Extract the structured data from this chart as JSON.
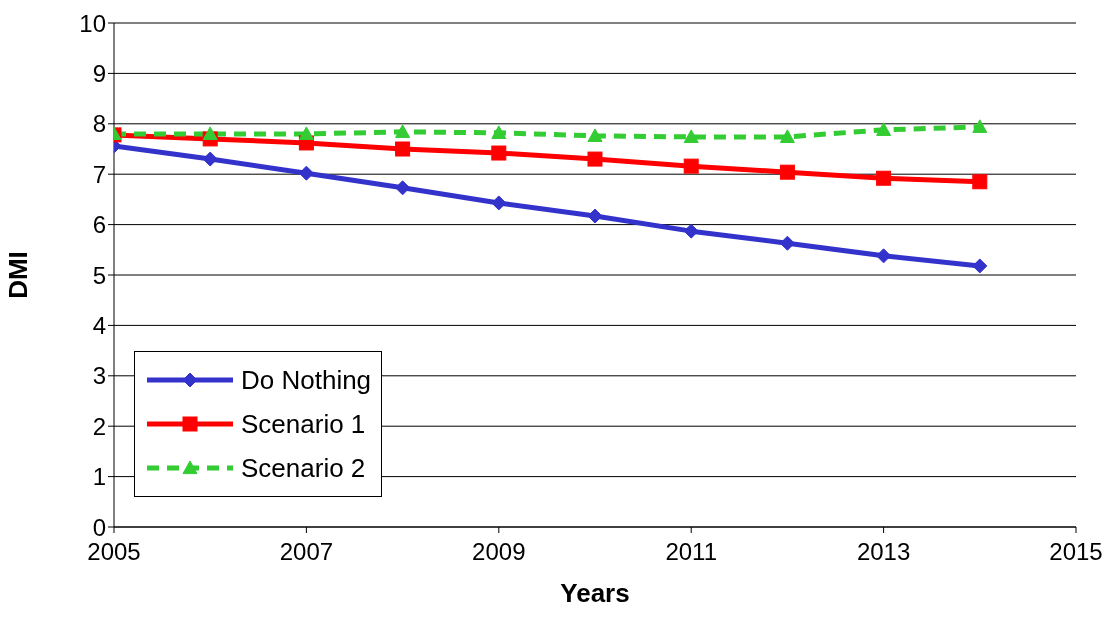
{
  "chart_data": {
    "type": "line",
    "xlabel": "Years",
    "ylabel": "DMI",
    "x": [
      2005,
      2006,
      2007,
      2008,
      2009,
      2010,
      2011,
      2012,
      2013,
      2014
    ],
    "series": [
      {
        "name": "Do Nothing",
        "color": "#3333cc",
        "marker": "diamond",
        "line_style": "solid",
        "values": [
          7.56,
          7.3,
          7.02,
          6.73,
          6.43,
          6.17,
          5.87,
          5.63,
          5.38,
          5.18
        ]
      },
      {
        "name": "Scenario 1",
        "color": "#ff0000",
        "marker": "square",
        "line_style": "solid",
        "values": [
          7.78,
          7.7,
          7.62,
          7.5,
          7.42,
          7.3,
          7.16,
          7.04,
          6.92,
          6.85
        ]
      },
      {
        "name": "Scenario 2",
        "color": "#33cc33",
        "marker": "triangle",
        "line_style": "dashed",
        "values": [
          7.8,
          7.8,
          7.8,
          7.84,
          7.82,
          7.76,
          7.74,
          7.74,
          7.88,
          7.94
        ]
      }
    ],
    "xlim": [
      2005,
      2015
    ],
    "xticks": [
      2005,
      2007,
      2009,
      2011,
      2013,
      2015
    ],
    "ylim": [
      0,
      10
    ],
    "yticks": [
      0,
      1,
      2,
      3,
      4,
      5,
      6,
      7,
      8,
      9,
      10
    ],
    "grid": "y",
    "legend": "bottom left"
  }
}
